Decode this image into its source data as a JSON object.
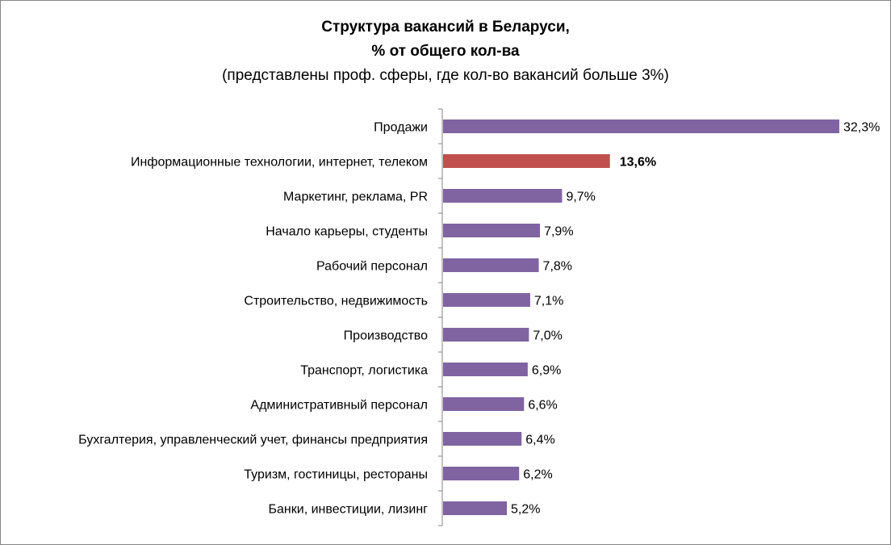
{
  "chart_data": {
    "type": "bar",
    "orientation": "horizontal",
    "title": "Структура вакансий в Беларуси,",
    "title_line2": "% от общего кол-ва",
    "subtitle": "(представлены проф. сферы, где кол-во вакансий больше 3%)",
    "categories": [
      "Продажи",
      "Информационные технологии, интернет, телеком",
      "Маркетинг, реклама, PR",
      "Начало карьеры, студенты",
      "Рабочий персонал",
      "Строительство, недвижимость",
      "Производство",
      "Транспорт, логистика",
      "Административный персонал",
      "Бухгалтерия, управленческий учет, финансы предприятия",
      "Туризм, гостиницы, рестораны",
      "Банки, инвестиции, лизинг"
    ],
    "values": [
      32.3,
      13.6,
      9.7,
      7.9,
      7.8,
      7.1,
      7.0,
      6.9,
      6.6,
      6.4,
      6.2,
      5.2
    ],
    "labels": [
      "32,3%",
      "13,6%",
      "9,7%",
      "7,9%",
      "7,8%",
      "7,1%",
      "7,0%",
      "6,9%",
      "6,6%",
      "6,4%",
      "6,2%",
      "5,2%"
    ],
    "highlight_index": 1,
    "colors": {
      "default": "#8064A2",
      "highlight": "#C0504D"
    },
    "xlabel": "",
    "ylabel": "",
    "grid": false,
    "legend": "none"
  }
}
